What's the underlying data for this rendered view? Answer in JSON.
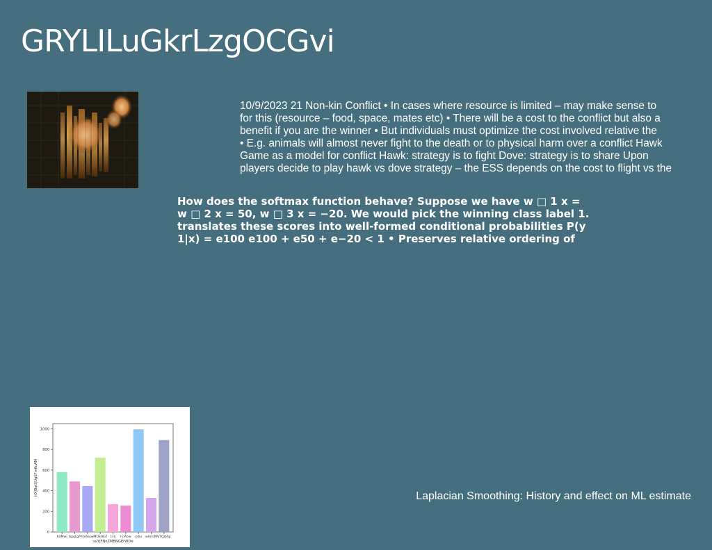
{
  "slide": {
    "title": "GRYLILuGkrLzgOCGvi",
    "paragraph_1": "10/9/2023 21 Non-kin Conflict • In cases where resource is limited – may make sense to\nfor this (resource – food, space, mates etc) • There will be a cost to the conflict but also a\nbenefit if you are the winner • But individuals must optimize the cost involved relative the\n• E.g. animals will almost never fight to the death or to physical harm over a conflict Hawk\nGame as a model for conflict Hawk: strategy is to fight Dove: strategy is to share Upon\nplayers decide to play hawk vs dove strategy – the ESS depends on the cost to flight vs the",
    "paragraph_2": "How does the softmax function behave? Suppose we have w □ 1 x =\nw □ 2 x = 50, w □ 3 x = −20. We would pick the winning class label 1.\ntranslates these scores into well-formed conditional probabilities P(y\n1|x) = e100 e100 + e50 + e−20 < 1 • Preserves relative ordering of",
    "caption": "Laplacian Smoothing: History and effect on ML estimate"
  },
  "colors": {
    "background": "#456f7e",
    "text": "#ffffff"
  },
  "chart_data": {
    "type": "bar",
    "categories": [
      "KdMwi",
      "bgqLgP",
      "RHSvjw",
      "MOkHEd",
      "cvn",
      "rviAow",
      "xdiu",
      "wUmIM",
      "VTQJbhp"
    ],
    "values": [
      580,
      490,
      445,
      720,
      270,
      255,
      995,
      330,
      890
    ],
    "colors": [
      "#8de8c4",
      "#e79ad0",
      "#a9a8f2",
      "#c2ed90",
      "#f8a5dc",
      "#ec8ad3",
      "#90c9f5",
      "#d5a6ec",
      "#9ea3c6"
    ],
    "title": "",
    "xlabel": "uvYjFNoZMBNGErWDe",
    "ylabel": "HXJBatXUgSFmKuAM",
    "ylim": [
      0,
      1050
    ],
    "yticks": [
      0,
      200,
      400,
      600,
      800,
      1000
    ],
    "grid": false
  }
}
